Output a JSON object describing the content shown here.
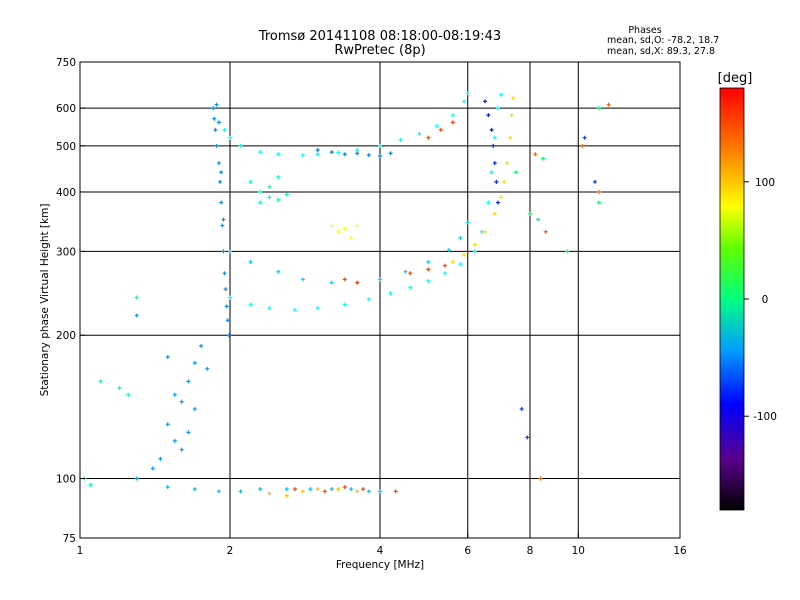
{
  "chart_data": {
    "type": "scatter",
    "title": "Tromsø 20141108 08:18:00-08:19:43",
    "subtitle": "RwPretec (8p)",
    "xlabel": "Frequency [MHz]",
    "ylabel": "Stationary phase Virtual Height [km]",
    "x_scale": "log",
    "y_scale": "log",
    "xlim": [
      1,
      16
    ],
    "ylim": [
      75,
      750
    ],
    "x_ticks": [
      1,
      2,
      4,
      6,
      8,
      10,
      16
    ],
    "y_ticks": [
      75,
      100,
      200,
      300,
      400,
      500,
      600,
      750
    ],
    "x_gridlines": [
      2,
      4,
      6,
      8,
      10
    ],
    "y_gridlines": [
      100,
      200,
      300,
      400,
      500,
      600
    ],
    "grid": true,
    "phase_stats": {
      "heading": "Phases",
      "line_o": "mean, sd,O: -78.2, 18.7",
      "line_x": "mean, sd,X:  89.3, 27.8"
    },
    "colorbar": {
      "label": "[deg]",
      "range": [
        -180,
        180
      ],
      "ticks": [
        100,
        0,
        -100
      ]
    },
    "traces": [
      {
        "phase": -95,
        "points": [
          [
            1.85,
            600
          ],
          [
            1.86,
            570
          ],
          [
            1.87,
            540
          ],
          [
            1.88,
            500
          ],
          [
            1.9,
            460
          ],
          [
            1.91,
            420
          ],
          [
            1.92,
            380
          ],
          [
            1.93,
            340
          ],
          [
            1.94,
            300
          ],
          [
            1.95,
            270
          ],
          [
            1.96,
            250
          ],
          [
            1.97,
            230
          ],
          [
            1.98,
            215
          ],
          [
            1.99,
            200
          ],
          [
            1.88,
            610
          ],
          [
            1.9,
            560
          ],
          [
            1.92,
            440
          ],
          [
            1.94,
            350
          ]
        ]
      },
      {
        "phase": -60,
        "points": [
          [
            1.95,
            540
          ],
          [
            2.0,
            520
          ],
          [
            2.1,
            500
          ],
          [
            2.3,
            485
          ],
          [
            2.5,
            480
          ],
          [
            2.8,
            478
          ],
          [
            3.0,
            480
          ],
          [
            3.3,
            484
          ],
          [
            3.6,
            490
          ],
          [
            4.0,
            500
          ],
          [
            4.4,
            515
          ],
          [
            4.8,
            530
          ],
          [
            5.2,
            550
          ],
          [
            5.6,
            580
          ],
          [
            5.9,
            620
          ],
          [
            6.0,
            645
          ]
        ]
      },
      {
        "phase": -100,
        "points": [
          [
            3.0,
            490
          ],
          [
            3.2,
            485
          ],
          [
            3.4,
            480
          ],
          [
            3.6,
            482
          ],
          [
            3.8,
            478
          ],
          [
            4.0,
            476
          ],
          [
            4.2,
            482
          ]
        ]
      },
      {
        "phase": -40,
        "points": [
          [
            2.2,
            420
          ],
          [
            2.3,
            400
          ],
          [
            2.4,
            390
          ],
          [
            2.5,
            385
          ],
          [
            2.6,
            395
          ],
          [
            2.4,
            410
          ],
          [
            2.5,
            430
          ],
          [
            2.3,
            380
          ]
        ]
      },
      {
        "phase": -75,
        "points": [
          [
            2.0,
            300
          ],
          [
            2.2,
            285
          ],
          [
            2.5,
            272
          ],
          [
            2.8,
            262
          ],
          [
            3.2,
            258
          ],
          [
            3.6,
            258
          ],
          [
            4.0,
            262
          ],
          [
            4.5,
            272
          ],
          [
            5.0,
            285
          ],
          [
            5.5,
            302
          ],
          [
            5.8,
            320
          ],
          [
            6.0,
            345
          ]
        ]
      },
      {
        "phase": -60,
        "points": [
          [
            2.0,
            240
          ],
          [
            2.2,
            232
          ],
          [
            2.4,
            228
          ],
          [
            2.7,
            226
          ],
          [
            3.0,
            228
          ],
          [
            3.4,
            232
          ],
          [
            3.8,
            238
          ],
          [
            4.2,
            245
          ],
          [
            4.6,
            252
          ],
          [
            5.0,
            260
          ],
          [
            5.4,
            270
          ],
          [
            5.8,
            282
          ],
          [
            6.2,
            300
          ],
          [
            6.4,
            330
          ],
          [
            6.6,
            380
          ],
          [
            6.7,
            440
          ],
          [
            6.8,
            520
          ],
          [
            6.9,
            600
          ],
          [
            7.0,
            640
          ]
        ]
      },
      {
        "phase": 110,
        "points": [
          [
            5.6,
            285
          ],
          [
            5.9,
            295
          ],
          [
            6.2,
            310
          ],
          [
            6.5,
            330
          ],
          [
            6.8,
            360
          ],
          [
            7.0,
            390
          ],
          [
            7.1,
            420
          ],
          [
            7.2,
            460
          ],
          [
            7.3,
            520
          ],
          [
            7.35,
            580
          ],
          [
            7.4,
            630
          ]
        ]
      },
      {
        "phase": -130,
        "points": [
          [
            6.5,
            620
          ],
          [
            6.6,
            580
          ],
          [
            6.7,
            540
          ],
          [
            6.75,
            500
          ],
          [
            6.8,
            460
          ],
          [
            6.85,
            420
          ],
          [
            6.9,
            380
          ]
        ]
      },
      {
        "phase": 160,
        "points": [
          [
            3.4,
            262
          ],
          [
            3.6,
            258
          ],
          [
            4.6,
            270
          ],
          [
            5.0,
            275
          ],
          [
            5.4,
            280
          ],
          [
            5.0,
            520
          ],
          [
            5.3,
            540
          ],
          [
            5.6,
            560
          ]
        ]
      },
      {
        "phase": 100,
        "points": [
          [
            3.2,
            340
          ],
          [
            3.3,
            330
          ],
          [
            3.4,
            335
          ],
          [
            3.5,
            320
          ],
          [
            3.6,
            340
          ]
        ]
      },
      {
        "phase": -90,
        "points": [
          [
            1.3,
            220
          ],
          [
            1.5,
            180
          ],
          [
            1.55,
            150
          ],
          [
            1.6,
            145
          ],
          [
            1.65,
            160
          ],
          [
            1.7,
            175
          ],
          [
            1.75,
            190
          ],
          [
            1.5,
            130
          ],
          [
            1.55,
            120
          ],
          [
            1.45,
            110
          ],
          [
            1.4,
            105
          ],
          [
            1.3,
            100
          ],
          [
            1.6,
            115
          ],
          [
            1.65,
            125
          ],
          [
            1.7,
            140
          ],
          [
            1.8,
            170
          ]
        ]
      },
      {
        "phase": -40,
        "points": [
          [
            1.02,
            100
          ],
          [
            1.05,
            97
          ],
          [
            1.1,
            160
          ],
          [
            1.2,
            155
          ],
          [
            1.25,
            150
          ],
          [
            1.3,
            240
          ]
        ]
      },
      {
        "phase": -80,
        "points": [
          [
            1.5,
            96
          ],
          [
            1.7,
            95
          ],
          [
            1.9,
            94
          ],
          [
            2.1,
            94
          ],
          [
            2.3,
            95
          ],
          [
            2.6,
            95
          ],
          [
            2.9,
            95
          ],
          [
            3.2,
            95
          ],
          [
            3.5,
            95
          ],
          [
            3.8,
            94
          ],
          [
            4.0,
            94
          ]
        ]
      },
      {
        "phase": 120,
        "points": [
          [
            2.4,
            93
          ],
          [
            2.6,
            92
          ],
          [
            2.8,
            94
          ],
          [
            3.0,
            95
          ],
          [
            3.3,
            95
          ],
          [
            3.6,
            94
          ]
        ]
      },
      {
        "phase": 160,
        "points": [
          [
            2.7,
            95
          ],
          [
            3.1,
            94
          ],
          [
            3.4,
            96
          ],
          [
            3.7,
            95
          ],
          [
            4.3,
            94
          ]
        ]
      },
      {
        "phase": -10,
        "points": [
          [
            7.5,
            440
          ],
          [
            8.0,
            360
          ],
          [
            8.3,
            350
          ],
          [
            8.5,
            470
          ],
          [
            9.5,
            300
          ],
          [
            11.0,
            600
          ],
          [
            11.0,
            380
          ]
        ]
      },
      {
        "phase": 150,
        "points": [
          [
            8.2,
            480
          ],
          [
            8.6,
            330
          ],
          [
            10.2,
            500
          ],
          [
            11.0,
            400
          ],
          [
            8.4,
            100
          ],
          [
            11.5,
            610
          ]
        ]
      },
      {
        "phase": -120,
        "points": [
          [
            7.7,
            140
          ],
          [
            7.9,
            122
          ],
          [
            10.3,
            520
          ],
          [
            10.8,
            420
          ]
        ]
      }
    ]
  }
}
